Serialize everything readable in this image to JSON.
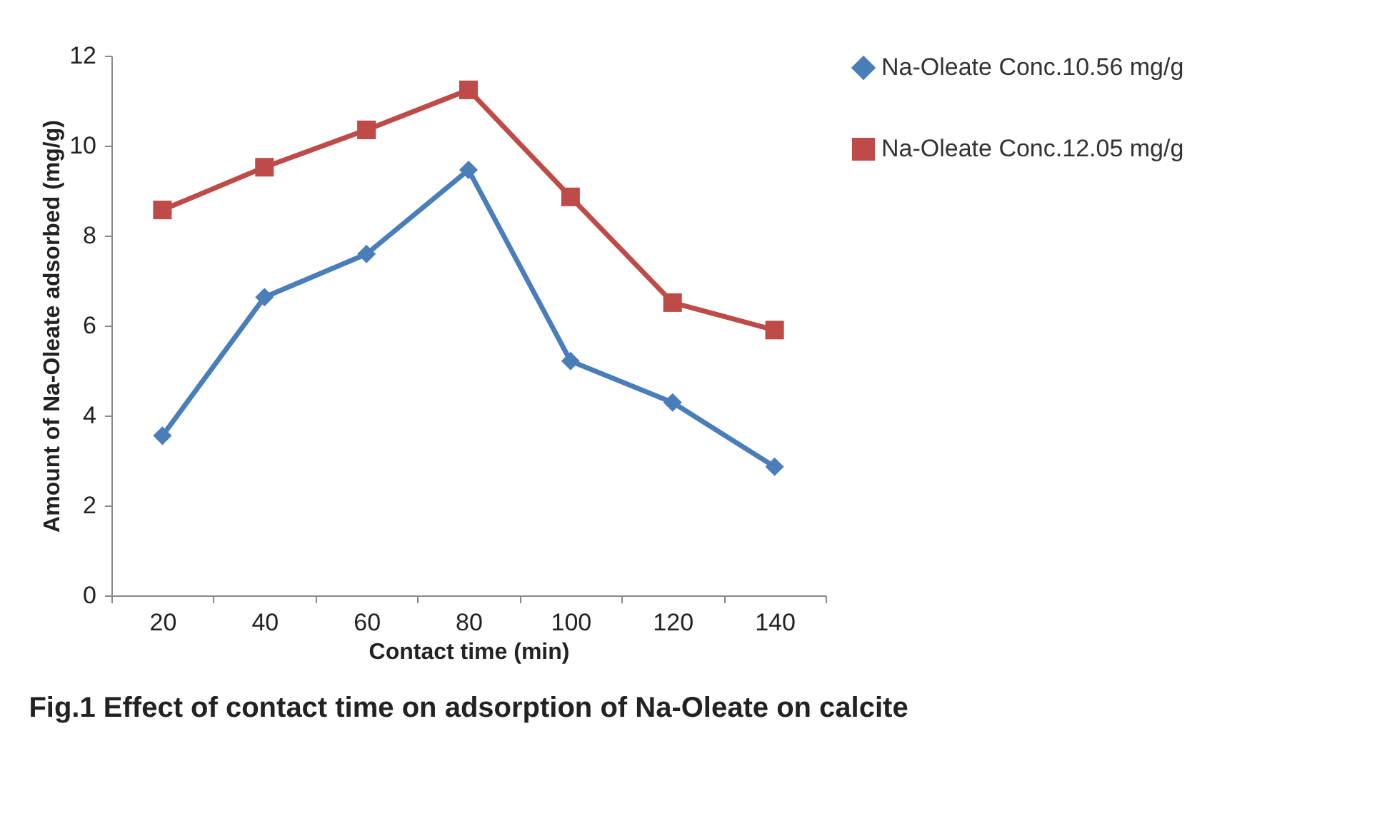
{
  "chart_data": {
    "type": "line",
    "title": "Fig.1 Effect of contact time on adsorption of Na-Oleate on calcite",
    "xlabel": "Contact time (min)",
    "ylabel": "Amount of Na-Oleate adsorbed (mg/g)",
    "categories": [
      "20",
      "40",
      "60",
      "80",
      "100",
      "120",
      "140"
    ],
    "series": [
      {
        "name": "Na-Oleate Conc.10.56 mg/g",
        "color": "#4a7ebb",
        "marker": "diamond",
        "values": [
          3.55,
          6.63,
          7.59,
          9.46,
          5.21,
          4.29,
          2.86
        ]
      },
      {
        "name": "Na-Oleate Conc.12.05 mg/g",
        "color": "#be4b48",
        "marker": "square",
        "values": [
          8.57,
          9.52,
          10.35,
          11.24,
          8.86,
          6.51,
          5.9
        ]
      }
    ],
    "ylim": [
      0,
      12
    ],
    "yticks": [
      0,
      2,
      4,
      6,
      8,
      10,
      12
    ],
    "grid": false,
    "legend": "right",
    "line_style": "solid"
  }
}
